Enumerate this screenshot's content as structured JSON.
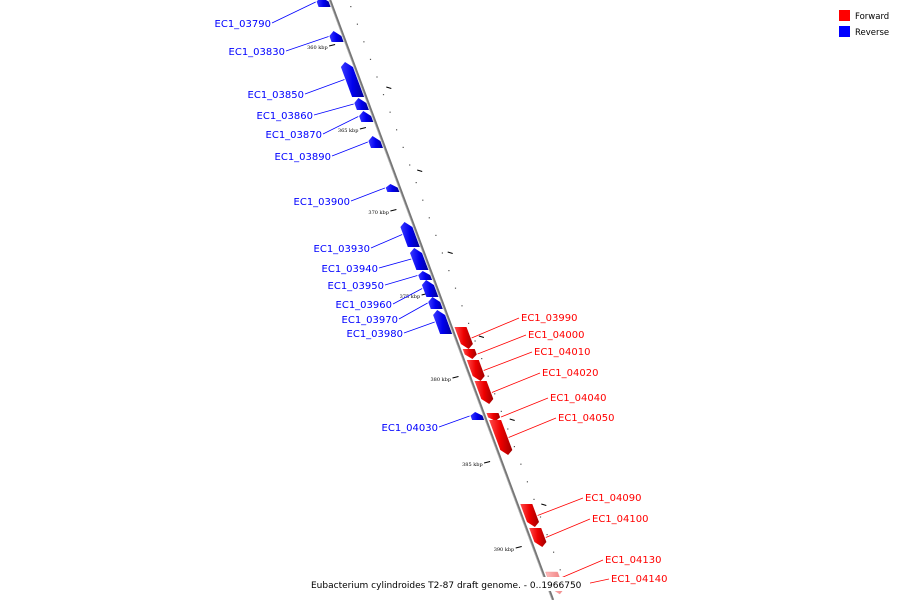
{
  "legend": {
    "forward_label": "Forward",
    "reverse_label": "Reverse",
    "forward_color": "#ff0000",
    "reverse_color": "#0000ff"
  },
  "caption": "Eubacterium cylindroides T2-87 draft genome. - 0..1966750",
  "ruler_labels": [
    "360 kbp",
    "365 kbp",
    "370 kbp",
    "375 kbp",
    "380 kbp",
    "385 kbp",
    "390 kbp"
  ],
  "genes": [
    {
      "id": "EC1_03790",
      "strand": "reverse"
    },
    {
      "id": "EC1_03830",
      "strand": "reverse"
    },
    {
      "id": "EC1_03850",
      "strand": "reverse"
    },
    {
      "id": "EC1_03860",
      "strand": "reverse"
    },
    {
      "id": "EC1_03870",
      "strand": "reverse"
    },
    {
      "id": "EC1_03890",
      "strand": "reverse"
    },
    {
      "id": "EC1_03900",
      "strand": "reverse"
    },
    {
      "id": "EC1_03930",
      "strand": "reverse"
    },
    {
      "id": "EC1_03940",
      "strand": "reverse"
    },
    {
      "id": "EC1_03950",
      "strand": "reverse"
    },
    {
      "id": "EC1_03960",
      "strand": "reverse"
    },
    {
      "id": "EC1_03970",
      "strand": "reverse"
    },
    {
      "id": "EC1_03980",
      "strand": "reverse"
    },
    {
      "id": "EC1_03990",
      "strand": "forward"
    },
    {
      "id": "EC1_04000",
      "strand": "forward"
    },
    {
      "id": "EC1_04010",
      "strand": "forward"
    },
    {
      "id": "EC1_04020",
      "strand": "forward"
    },
    {
      "id": "EC1_04030",
      "strand": "reverse"
    },
    {
      "id": "EC1_04040",
      "strand": "forward"
    },
    {
      "id": "EC1_04050",
      "strand": "forward"
    },
    {
      "id": "EC1_04090",
      "strand": "forward"
    },
    {
      "id": "EC1_04100",
      "strand": "forward"
    },
    {
      "id": "EC1_04130",
      "strand": "forward"
    },
    {
      "id": "EC1_04140",
      "strand": "forward"
    }
  ]
}
